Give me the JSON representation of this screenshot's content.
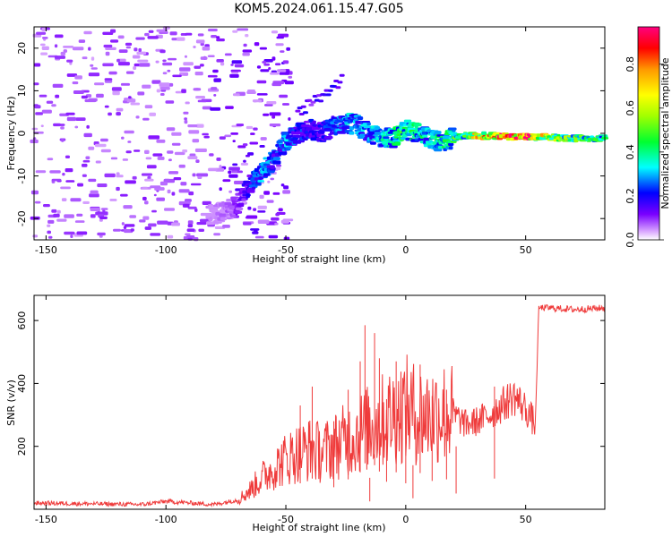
{
  "title": "KOM5.2024.061.15.47.G05",
  "chart_data": [
    {
      "type": "heatmap",
      "xlabel": "Height of straight line (km)",
      "ylabel": "Frequency (Hz)",
      "xlim": [
        -155,
        83
      ],
      "ylim": [
        -25,
        25
      ],
      "xticks": [
        -150,
        -100,
        -50,
        0,
        50
      ],
      "yticks": [
        -20,
        -10,
        0,
        10,
        20
      ],
      "colorbar": {
        "label": "Normalized spectral amplitude",
        "range": [
          0,
          0.97
        ],
        "ticks": [
          "0.0",
          "0.2",
          "0.4",
          "0.6",
          "0.8"
        ],
        "colormap": "gist_rainbow"
      },
      "ridge": {
        "description_points_height_km": [
          -80,
          -70,
          -65,
          -60,
          -55,
          -50,
          -45,
          -40,
          -35,
          -30,
          -25,
          -20,
          -15,
          -10,
          -5,
          0,
          5,
          10,
          15,
          20,
          25,
          30,
          40,
          50,
          60,
          70,
          83
        ],
        "frequency_hz": [
          -19,
          -17,
          -12,
          -9,
          -6,
          -2,
          0,
          1,
          0,
          2,
          2.5,
          2,
          0,
          -1,
          -1,
          1,
          0,
          -1,
          -2,
          -1,
          -0.5,
          -0.5,
          -0.7,
          -0.8,
          -1,
          -1.1,
          -1.2
        ],
        "amplitude": [
          0.05,
          0.1,
          0.2,
          0.3,
          0.25,
          0.3,
          0.25,
          0.2,
          0.2,
          0.25,
          0.3,
          0.35,
          0.3,
          0.35,
          0.4,
          0.45,
          0.4,
          0.35,
          0.4,
          0.45,
          0.5,
          0.7,
          0.9,
          0.95,
          0.6,
          0.5,
          0.4
        ]
      }
    },
    {
      "type": "line",
      "xlabel": "Height of straight line (km)",
      "ylabel": "SNR (v/v)",
      "xlim": [
        -155,
        83
      ],
      "ylim": [
        0,
        680
      ],
      "xticks": [
        -150,
        -100,
        -50,
        0,
        50
      ],
      "yticks": [
        200,
        400,
        600
      ],
      "color": "#ef3b3b",
      "series_envelope": {
        "x": [
          -155,
          -110,
          -100,
          -80,
          -70,
          -65,
          -60,
          -55,
          -50,
          -45,
          -40,
          -35,
          -30,
          -25,
          -20,
          -15,
          -10,
          -5,
          0,
          5,
          10,
          15,
          20,
          25,
          30,
          35,
          40,
          45,
          50,
          54,
          55.5,
          60,
          70,
          83
        ],
        "y": [
          20,
          15,
          25,
          15,
          30,
          60,
          100,
          130,
          160,
          180,
          190,
          180,
          200,
          220,
          240,
          260,
          280,
          300,
          320,
          300,
          300,
          310,
          300,
          270,
          280,
          300,
          330,
          360,
          320,
          270,
          640,
          640,
          635,
          640
        ]
      },
      "spikes": [
        {
          "x": -44,
          "y": 330
        },
        {
          "x": -39,
          "y": 390
        },
        {
          "x": -30,
          "y": 280
        },
        {
          "x": -24,
          "y": 380
        },
        {
          "x": -19,
          "y": 470
        },
        {
          "x": -17,
          "y": 585
        },
        {
          "x": -15,
          "y": 100
        },
        {
          "x": -13,
          "y": 560
        },
        {
          "x": -11,
          "y": 480
        },
        {
          "x": -8,
          "y": 350
        },
        {
          "x": -4,
          "y": 470
        },
        {
          "x": 0,
          "y": 330
        },
        {
          "x": 3,
          "y": 140
        },
        {
          "x": 6,
          "y": 460
        },
        {
          "x": 11,
          "y": 360
        },
        {
          "x": 17,
          "y": 380
        },
        {
          "x": 21,
          "y": 200
        },
        {
          "x": 37,
          "y": 390
        }
      ]
    }
  ]
}
